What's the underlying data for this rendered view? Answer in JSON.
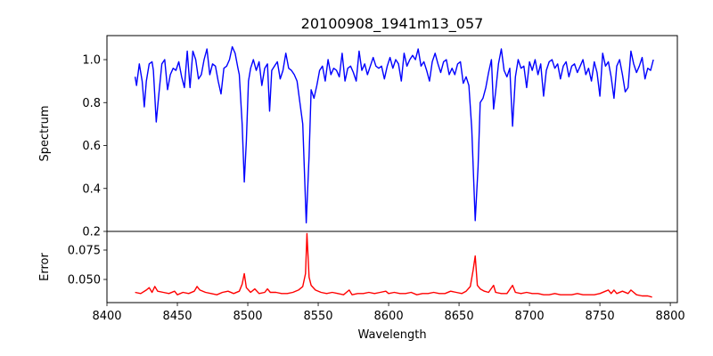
{
  "chart_data": [
    {
      "type": "line",
      "title": "20100908_1941m13_057",
      "xlabel": "",
      "ylabel": "Spectrum",
      "xlim": [
        8400,
        8805
      ],
      "ylim": [
        0.2,
        1.112
      ],
      "yticks": [
        0.2,
        0.4,
        0.6,
        0.8,
        1.0
      ],
      "ytick_labels": [
        "0.2",
        "0.4",
        "0.6",
        "0.8",
        "1.0"
      ],
      "series": [
        {
          "name": "Spectrum",
          "color": "#0000ff",
          "x": [
            8420,
            8421,
            8423,
            8425,
            8426.5,
            8428,
            8430,
            8432,
            8433,
            8435,
            8437,
            8439,
            8441,
            8443,
            8445,
            8447,
            8449,
            8451,
            8453,
            8455,
            8457,
            8459,
            8461,
            8463,
            8465,
            8467,
            8469,
            8471,
            8473,
            8475,
            8477,
            8479,
            8481,
            8483,
            8485,
            8487,
            8489,
            8491,
            8493,
            8494,
            8496,
            8497.5,
            8499,
            8500.5,
            8502,
            8504,
            8506,
            8508,
            8510,
            8512,
            8514,
            8515.5,
            8517,
            8519,
            8521,
            8523,
            8525,
            8527,
            8529,
            8531,
            8533,
            8535,
            8537,
            8539,
            8541.5,
            8543.5,
            8545,
            8547,
            8549,
            8551,
            8553,
            8555,
            8557,
            8559,
            8561,
            8563,
            8565,
            8567,
            8569,
            8571,
            8573,
            8575,
            8577,
            8579,
            8581,
            8583,
            8585,
            8587,
            8589,
            8591,
            8593,
            8595,
            8597,
            8599,
            8601,
            8603,
            8605,
            8607,
            8609,
            8611,
            8613,
            8615,
            8617,
            8619,
            8621,
            8623,
            8625,
            8627,
            8629,
            8631,
            8633,
            8635,
            8637,
            8639,
            8641,
            8643,
            8645,
            8647,
            8649,
            8651,
            8653,
            8655,
            8657,
            8659,
            8661.5,
            8663.5,
            8665,
            8667,
            8669,
            8671,
            8673,
            8674.5,
            8676,
            8678,
            8680,
            8682,
            8684,
            8686,
            8688,
            8690,
            8692,
            8694,
            8696,
            8698,
            8700,
            8702,
            8704,
            8706,
            8708,
            8710,
            8712,
            8714,
            8716,
            8718,
            8720,
            8722,
            8724,
            8726,
            8728,
            8730,
            8732,
            8734,
            8736,
            8738,
            8740,
            8742,
            8744,
            8746,
            8748,
            8750,
            8752,
            8754,
            8756,
            8758,
            8760,
            8762,
            8764,
            8766,
            8768,
            8770,
            8772,
            8774,
            8776,
            8778,
            8780,
            8782,
            8784,
            8786,
            8788
          ],
          "y": [
            0.92,
            0.88,
            0.98,
            0.9,
            0.78,
            0.9,
            0.98,
            0.99,
            0.95,
            0.71,
            0.85,
            0.98,
            1.0,
            0.86,
            0.93,
            0.96,
            0.95,
            0.99,
            0.92,
            0.87,
            1.04,
            0.87,
            1.04,
            1.0,
            0.91,
            0.93,
            1.0,
            1.05,
            0.93,
            0.98,
            0.97,
            0.9,
            0.84,
            0.96,
            0.97,
            1.0,
            1.06,
            1.03,
            0.96,
            0.93,
            0.7,
            0.43,
            0.62,
            0.9,
            0.96,
            1.0,
            0.95,
            0.99,
            0.88,
            0.96,
            0.98,
            0.76,
            0.95,
            0.97,
            0.99,
            0.91,
            0.95,
            1.03,
            0.96,
            0.95,
            0.93,
            0.9,
            0.8,
            0.7,
            0.24,
            0.55,
            0.86,
            0.82,
            0.88,
            0.95,
            0.97,
            0.9,
            1.0,
            0.93,
            0.96,
            0.95,
            0.92,
            1.03,
            0.9,
            0.96,
            0.97,
            0.94,
            0.9,
            1.04,
            0.95,
            0.98,
            0.93,
            0.97,
            1.01,
            0.97,
            0.96,
            0.97,
            0.91,
            0.97,
            1.01,
            0.96,
            1.0,
            0.98,
            0.9,
            1.03,
            0.97,
            1.0,
            1.02,
            1.0,
            1.05,
            0.97,
            0.99,
            0.95,
            0.9,
            0.99,
            1.03,
            0.98,
            0.94,
            0.99,
            1.0,
            0.93,
            0.96,
            0.93,
            0.98,
            0.99,
            0.89,
            0.92,
            0.88,
            0.68,
            0.25,
            0.5,
            0.8,
            0.82,
            0.87,
            0.94,
            1.0,
            0.77,
            0.85,
            0.98,
            1.05,
            0.95,
            0.92,
            0.96,
            0.69,
            0.92,
            1.0,
            0.96,
            0.97,
            0.87,
            0.99,
            0.95,
            1.0,
            0.93,
            0.98,
            0.83,
            0.95,
            0.99,
            1.0,
            0.96,
            0.98,
            0.91,
            0.97,
            0.99,
            0.92,
            0.97,
            0.98,
            0.94,
            0.97,
            1.0,
            0.93,
            0.96,
            0.9,
            0.99,
            0.94,
            0.83,
            1.03,
            0.97,
            0.99,
            0.92,
            0.82,
            0.97,
            1.0,
            0.93,
            0.85,
            0.87,
            1.04,
            0.98,
            0.94,
            0.97,
            1.01,
            0.91,
            0.96,
            0.95,
            1.0
          ]
        }
      ]
    },
    {
      "type": "line",
      "xlabel": "Wavelength",
      "ylabel": "Error",
      "xlim": [
        8400,
        8805
      ],
      "ylim": [
        0.0303,
        0.0909
      ],
      "xticks": [
        8400,
        8450,
        8500,
        8550,
        8600,
        8650,
        8700,
        8750,
        8800
      ],
      "xtick_labels": [
        "8400",
        "8450",
        "8500",
        "8550",
        "8600",
        "8650",
        "8700",
        "8750",
        "8800"
      ],
      "yticks": [
        0.05,
        0.075
      ],
      "ytick_labels": [
        "0.050",
        "0.075"
      ],
      "series": [
        {
          "name": "Error",
          "color": "#ff0000",
          "x": [
            8420,
            8424,
            8428,
            8430,
            8432,
            8434,
            8436,
            8440,
            8444,
            8448,
            8450,
            8454,
            8458,
            8462,
            8464,
            8466,
            8470,
            8474,
            8478,
            8482,
            8486,
            8490,
            8494,
            8496,
            8497.5,
            8499,
            8502,
            8505,
            8508,
            8512,
            8514,
            8516,
            8520,
            8524,
            8528,
            8532,
            8536,
            8539,
            8541,
            8542,
            8543.5,
            8545,
            8548,
            8552,
            8556,
            8560,
            8564,
            8568,
            8572,
            8574,
            8578,
            8582,
            8586,
            8590,
            8594,
            8598,
            8600,
            8604,
            8608,
            8612,
            8616,
            8620,
            8624,
            8628,
            8632,
            8636,
            8640,
            8644,
            8648,
            8652,
            8655,
            8658,
            8660,
            8661.5,
            8663,
            8665,
            8668,
            8671,
            8674.5,
            8676,
            8680,
            8684,
            8688,
            8690,
            8694,
            8698,
            8702,
            8706,
            8710,
            8714,
            8718,
            8722,
            8726,
            8730,
            8734,
            8738,
            8742,
            8746,
            8750,
            8754,
            8756,
            8758,
            8760,
            8762,
            8766,
            8770,
            8772,
            8776,
            8780,
            8784,
            8787
          ],
          "y": [
            0.039,
            0.038,
            0.041,
            0.043,
            0.039,
            0.044,
            0.04,
            0.039,
            0.038,
            0.04,
            0.037,
            0.039,
            0.038,
            0.04,
            0.044,
            0.041,
            0.039,
            0.038,
            0.037,
            0.039,
            0.04,
            0.038,
            0.04,
            0.046,
            0.055,
            0.043,
            0.039,
            0.042,
            0.038,
            0.039,
            0.042,
            0.039,
            0.039,
            0.038,
            0.038,
            0.039,
            0.041,
            0.044,
            0.055,
            0.089,
            0.052,
            0.045,
            0.041,
            0.039,
            0.038,
            0.039,
            0.038,
            0.037,
            0.041,
            0.037,
            0.038,
            0.038,
            0.039,
            0.038,
            0.039,
            0.04,
            0.038,
            0.039,
            0.038,
            0.038,
            0.039,
            0.037,
            0.038,
            0.038,
            0.039,
            0.038,
            0.038,
            0.04,
            0.039,
            0.038,
            0.04,
            0.044,
            0.058,
            0.07,
            0.045,
            0.042,
            0.04,
            0.039,
            0.045,
            0.039,
            0.038,
            0.038,
            0.045,
            0.039,
            0.038,
            0.039,
            0.038,
            0.038,
            0.037,
            0.037,
            0.038,
            0.037,
            0.037,
            0.037,
            0.038,
            0.037,
            0.037,
            0.037,
            0.038,
            0.04,
            0.041,
            0.038,
            0.041,
            0.038,
            0.04,
            0.038,
            0.041,
            0.037,
            0.036,
            0.036,
            0.035
          ]
        }
      ]
    }
  ]
}
